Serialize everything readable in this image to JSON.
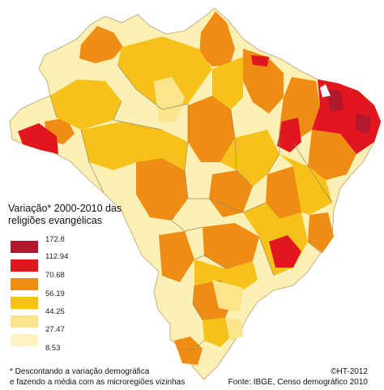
{
  "map": {
    "legend_title": [
      "Variação* 2000-2010 das",
      "religiões evangélicas"
    ],
    "legend": [
      {
        "label": "172.8",
        "color": "#b2182b"
      },
      {
        "label": "112.94",
        "color": "#e2161f"
      },
      {
        "label": "70.68",
        "color": "#ee8c13"
      },
      {
        "label": "56.19",
        "color": "#f6c21a"
      },
      {
        "label": "44.25",
        "color": "#fbe48a"
      },
      {
        "label": "27.47",
        "color": "#fdf3c4"
      },
      {
        "label": "8.53",
        "color": "#ffffff"
      }
    ],
    "footnote": [
      "* Descontando a variação demográfica",
      "e fazendo a média com as microregiões vizinhas"
    ],
    "credit": [
      "©HT-2012",
      "Fonte: IBGE, Censo demográfico 2010"
    ]
  }
}
